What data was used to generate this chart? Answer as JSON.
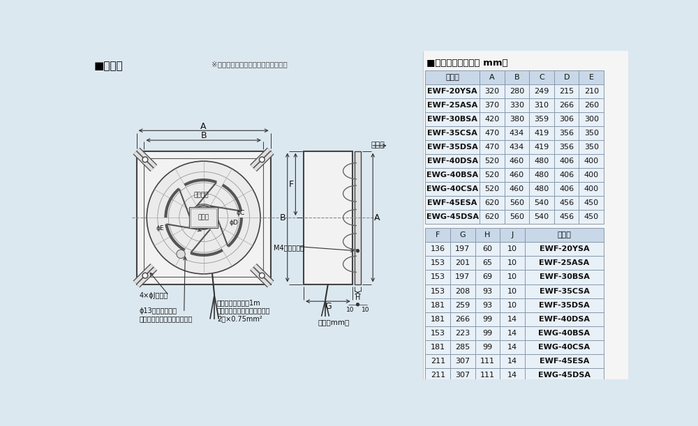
{
  "bg_color": "#dce8f0",
  "table_header_bg": "#c8d8e8",
  "table_row_bg": "#e8f0f8",
  "table_border": "#8899aa",
  "left_title": "■外形図",
  "note_text": "※外観は機種により多少異なります。",
  "right_title": "■変化寸法表（単位 mm）",
  "t1_headers": [
    "形　名",
    "A",
    "B",
    "C",
    "D",
    "E"
  ],
  "t1_col_widths": [
    100,
    46,
    46,
    46,
    46,
    46
  ],
  "t1_rows": [
    [
      "EWF-20YSA",
      "320",
      "280",
      "249",
      "215",
      "210"
    ],
    [
      "EWF-25ASA",
      "370",
      "330",
      "310",
      "266",
      "260"
    ],
    [
      "EWF-30BSA",
      "420",
      "380",
      "359",
      "306",
      "300"
    ],
    [
      "EWF-35CSA",
      "470",
      "434",
      "419",
      "356",
      "350"
    ],
    [
      "EWF-35DSA",
      "470",
      "434",
      "419",
      "356",
      "350"
    ],
    [
      "EWF-40DSA",
      "520",
      "460",
      "480",
      "406",
      "400"
    ],
    [
      "EWG-40BSA",
      "520",
      "460",
      "480",
      "406",
      "400"
    ],
    [
      "EWG-40CSA",
      "520",
      "460",
      "480",
      "406",
      "400"
    ],
    [
      "EWF-45ESA",
      "620",
      "560",
      "540",
      "456",
      "450"
    ],
    [
      "EWG-45DSA",
      "620",
      "560",
      "540",
      "456",
      "450"
    ]
  ],
  "t2_headers": [
    "F",
    "G",
    "H",
    "J",
    "形　名"
  ],
  "t2_col_widths": [
    46,
    46,
    46,
    46,
    146
  ],
  "t2_rows": [
    [
      "136",
      "197",
      "60",
      "10",
      "EWF-20YSA"
    ],
    [
      "153",
      "201",
      "65",
      "10",
      "EWF-25ASA"
    ],
    [
      "153",
      "197",
      "69",
      "10",
      "EWF-30BSA"
    ],
    [
      "153",
      "208",
      "93",
      "10",
      "EWF-35CSA"
    ],
    [
      "181",
      "259",
      "93",
      "10",
      "EWF-35DSA"
    ],
    [
      "181",
      "266",
      "99",
      "14",
      "EWF-40DSA"
    ],
    [
      "153",
      "223",
      "99",
      "14",
      "EWG-40BSA"
    ],
    [
      "181",
      "285",
      "99",
      "14",
      "EWG-40CSA"
    ],
    [
      "211",
      "307",
      "111",
      "14",
      "EWF-45ESA"
    ],
    [
      "211",
      "307",
      "111",
      "14",
      "EWG-45DSA"
    ]
  ],
  "lbl_A": "A",
  "lbl_B": "B",
  "lbl_B2": "B",
  "lbl_A2": "A",
  "lbl_F": "F",
  "lbl_G": "G",
  "lbl_H": "H",
  "lbl_phiC": "ϕC",
  "lbl_phiD": "ϕD",
  "lbl_phiE": "ϕE",
  "lbl_kaiten": "回転方向",
  "lbl_meiban": "銘　板",
  "lbl_toritsuke": "4×ϕJ取付穴",
  "lbl_knockout": "ϕ13ノックアウト\n電動シャッターコード取出用",
  "lbl_cable": "電源コード有効长1m\nビニルキャブタイヤケーブル\n2芯×0.75mm²",
  "lbl_earth": "M4アースねじ",
  "lbl_wind": "風方向",
  "lbl_units": "（単位mm）"
}
